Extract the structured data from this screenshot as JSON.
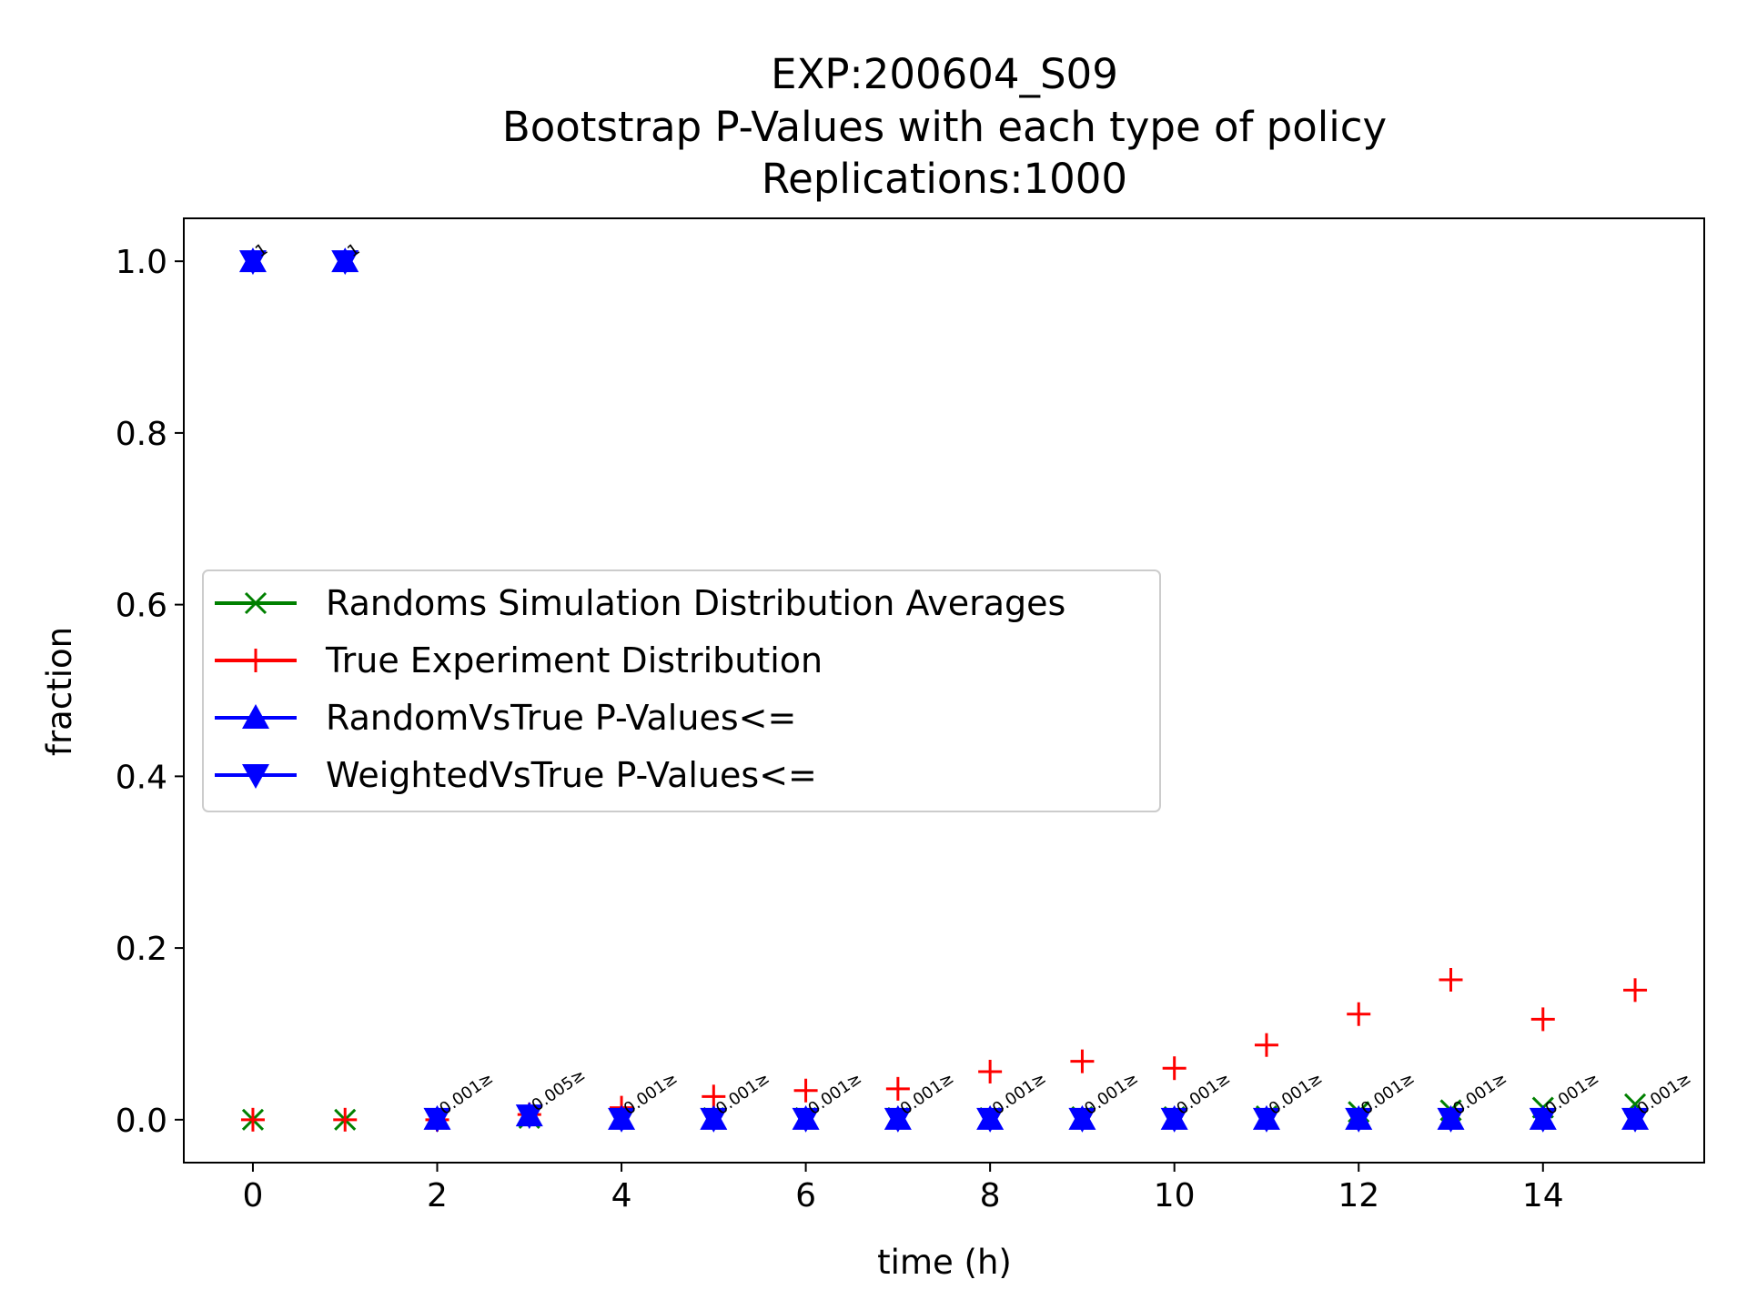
{
  "chart_data": {
    "type": "scatter",
    "title": [
      "EXP:200604_S09",
      "Bootstrap P-Values with each type of policy",
      "Replications:1000"
    ],
    "xlabel": "time (h)",
    "ylabel": "fraction",
    "xlim": [
      -0.75,
      15.75
    ],
    "ylim": [
      -0.05,
      1.05
    ],
    "xticks": [
      0,
      2,
      4,
      6,
      8,
      10,
      12,
      14
    ],
    "xtick_labels": [
      "0",
      "2",
      "4",
      "6",
      "8",
      "10",
      "12",
      "14"
    ],
    "yticks": [
      0.0,
      0.2,
      0.4,
      0.6,
      0.8,
      1.0
    ],
    "ytick_labels": [
      "0.0",
      "0.2",
      "0.4",
      "0.6",
      "0.8",
      "1.0"
    ],
    "grid": false,
    "legend_position": "center-left",
    "x": [
      0,
      1,
      2,
      3,
      4,
      5,
      6,
      7,
      8,
      9,
      10,
      11,
      12,
      13,
      14,
      15
    ],
    "series": [
      {
        "name": "Randoms Simulation Distribution Averages",
        "color": "#008000",
        "marker": "x",
        "values": [
          0.0,
          0.0,
          0.001,
          0.002,
          0.002,
          0.002,
          0.002,
          0.002,
          0.002,
          0.003,
          0.003,
          0.004,
          0.009,
          0.011,
          0.014,
          0.018
        ]
      },
      {
        "name": "True Experiment Distribution",
        "color": "#ff0000",
        "marker": "+",
        "values": [
          0.0,
          0.0,
          0.0,
          0.006,
          0.014,
          0.027,
          0.034,
          0.036,
          0.056,
          0.068,
          0.06,
          0.087,
          0.123,
          0.163,
          0.117,
          0.151
        ]
      },
      {
        "name": "RandomVsTrue P-Values<=",
        "color": "#0000ff",
        "marker": "triangle-up",
        "values": [
          1.0,
          1.0,
          0.001,
          0.005,
          0.001,
          0.001,
          0.001,
          0.001,
          0.001,
          0.001,
          0.001,
          0.001,
          0.001,
          0.001,
          0.001,
          0.001
        ]
      },
      {
        "name": "WeightedVsTrue P-Values<=",
        "color": "#0000ff",
        "marker": "triangle-down",
        "values": [
          1.0,
          1.0,
          0.001,
          0.005,
          0.001,
          0.001,
          0.001,
          0.001,
          0.001,
          0.001,
          0.001,
          0.001,
          0.001,
          0.001,
          0.001,
          0.001
        ]
      }
    ],
    "annotations": [
      {
        "x": 0,
        "y": 1.0,
        "text": "1"
      },
      {
        "x": 1,
        "y": 1.0,
        "text": "1"
      },
      {
        "x": 2,
        "y": 0.001,
        "text": "0.001≥"
      },
      {
        "x": 3,
        "y": 0.005,
        "text": "0.005≥"
      },
      {
        "x": 4,
        "y": 0.001,
        "text": "0.001≥"
      },
      {
        "x": 5,
        "y": 0.001,
        "text": "0.001≥"
      },
      {
        "x": 6,
        "y": 0.001,
        "text": "0.001≥"
      },
      {
        "x": 7,
        "y": 0.001,
        "text": "0.001≥"
      },
      {
        "x": 8,
        "y": 0.001,
        "text": "0.001≥"
      },
      {
        "x": 9,
        "y": 0.001,
        "text": "0.001≥"
      },
      {
        "x": 10,
        "y": 0.001,
        "text": "0.001≥"
      },
      {
        "x": 11,
        "y": 0.001,
        "text": "0.001≥"
      },
      {
        "x": 12,
        "y": 0.001,
        "text": "0.001≥"
      },
      {
        "x": 13,
        "y": 0.001,
        "text": "0.001≥"
      },
      {
        "x": 14,
        "y": 0.001,
        "text": "0.001≥"
      },
      {
        "x": 15,
        "y": 0.001,
        "text": "0.001≥"
      }
    ]
  }
}
